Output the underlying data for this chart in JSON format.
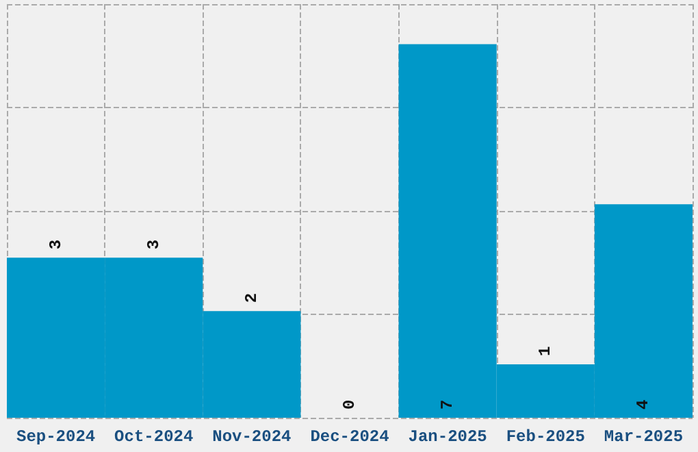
{
  "chart_data": {
    "type": "bar",
    "categories": [
      "Sep-2024",
      "Oct-2024",
      "Nov-2024",
      "Dec-2024",
      "Jan-2025",
      "Feb-2025",
      "Mar-2025"
    ],
    "values": [
      3,
      3,
      2,
      0,
      7,
      1,
      4
    ],
    "color": "#0098c8",
    "data_labels": true,
    "grid": true,
    "ylim": [
      0,
      7.75
    ],
    "yticks": [
      {
        "value": 0,
        "label": null
      },
      {
        "value": 1.94,
        "label": null
      },
      {
        "value": 3.88,
        "label": null
      },
      {
        "value": 5.81,
        "label": null
      },
      {
        "value": 7.75,
        "label": null
      }
    ],
    "tick_labels": "x"
  }
}
